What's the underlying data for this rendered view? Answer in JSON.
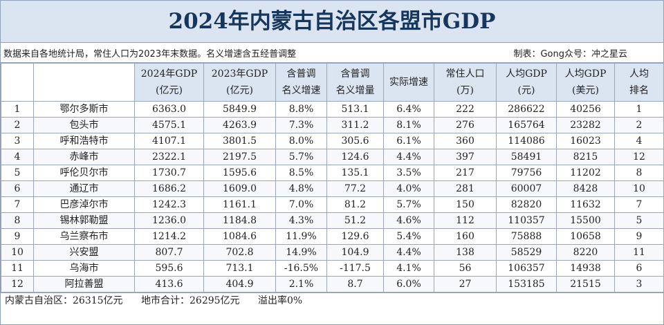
{
  "title": "2024年内蒙古自治区各盟市GDP",
  "note_left": "数据来自各地统计局，常住人口为2023年末数据。名义增速含五经普调整",
  "note_right": "制表：Gong众号：冲之星云",
  "headers": [
    [
      "",
      ""
    ],
    [
      "",
      ""
    ],
    [
      "2024年GDP",
      "(亿元)"
    ],
    [
      "2023年GDP",
      "(亿元)"
    ],
    [
      "含普调",
      "名义增速"
    ],
    [
      "含普调",
      "名义增量"
    ],
    [
      "实际增速",
      ""
    ],
    [
      "常住人口",
      "(万)"
    ],
    [
      "人均GDP",
      "(元)"
    ],
    [
      "人均GDP",
      "(美元)"
    ],
    [
      "人均",
      "排名"
    ]
  ],
  "rows": [
    [
      "1",
      "鄂尔多斯市",
      "6363.0",
      "5849.9",
      "8.8%",
      "513.1",
      "6.4%",
      "222",
      "286622",
      "40256",
      "1"
    ],
    [
      "2",
      "包头市",
      "4575.1",
      "4263.9",
      "7.3%",
      "311.2",
      "8.1%",
      "276",
      "165764",
      "23282",
      "2"
    ],
    [
      "3",
      "呼和浩特市",
      "4107.1",
      "3801.5",
      "8.0%",
      "305.6",
      "6.1%",
      "360",
      "114086",
      "16023",
      "4"
    ],
    [
      "4",
      "赤峰市",
      "2322.1",
      "2197.5",
      "5.7%",
      "124.6",
      "4.4%",
      "397",
      "58491",
      "8215",
      "12"
    ],
    [
      "5",
      "呼伦贝尔市",
      "1730.7",
      "1595.6",
      "8.5%",
      "135.1",
      "3.5%",
      "217",
      "79756",
      "11202",
      "8"
    ],
    [
      "6",
      "通辽市",
      "1686.2",
      "1609.0",
      "4.8%",
      "77.2",
      "4.0%",
      "281",
      "60007",
      "8428",
      "10"
    ],
    [
      "7",
      "巴彦淖尔市",
      "1242.3",
      "1161.1",
      "7.0%",
      "81.2",
      "5.7%",
      "150",
      "82820",
      "11632",
      "7"
    ],
    [
      "8",
      "锡林郭勒盟",
      "1236.0",
      "1184.8",
      "4.3%",
      "51.2",
      "4.6%",
      "112",
      "110357",
      "15500",
      "5"
    ],
    [
      "9",
      "乌兰察布市",
      "1214.2",
      "1084.6",
      "11.9%",
      "129.6",
      "5.4%",
      "160",
      "75888",
      "10658",
      "9"
    ],
    [
      "10",
      "兴安盟",
      "807.7",
      "702.8",
      "14.9%",
      "104.9",
      "4.4%",
      "138",
      "58529",
      "8220",
      "11"
    ],
    [
      "11",
      "乌海市",
      "595.6",
      "713.1",
      "-16.5%",
      "-117.5",
      "4.1%",
      "56",
      "106357",
      "14938",
      "6"
    ],
    [
      "12",
      "阿拉善盟",
      "413.6",
      "404.9",
      "2.1%",
      "8.7",
      "6.0%",
      "27",
      "153185",
      "21515",
      "3"
    ]
  ],
  "footer": {
    "total": "内蒙古自治区：26315亿元",
    "sum": "地市合计：26295亿元",
    "overflow": "溢出率0%"
  }
}
